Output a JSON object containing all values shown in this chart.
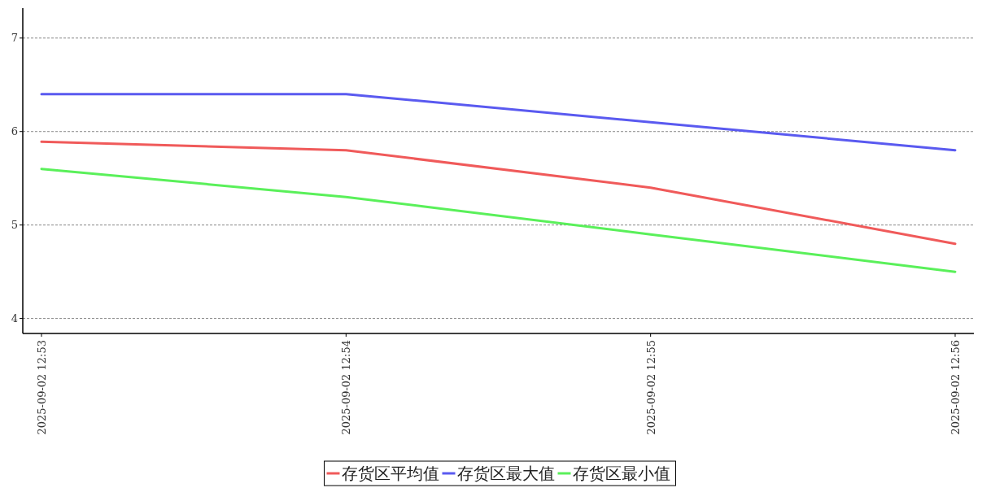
{
  "chart_data": {
    "type": "line",
    "categories": [
      "2025-09-02 12:53",
      "2025-09-02 12:54",
      "2025-09-02 12:55",
      "2025-09-02 12:56"
    ],
    "series": [
      {
        "name": "存货区平均值",
        "color": "#f05a5a",
        "values": [
          5.89,
          5.8,
          5.4,
          4.8
        ]
      },
      {
        "name": "存货区最大值",
        "color": "#5a5af0",
        "values": [
          6.4,
          6.4,
          6.1,
          5.8
        ]
      },
      {
        "name": "存货区最小值",
        "color": "#5af05a",
        "values": [
          5.6,
          5.3,
          4.9,
          4.5
        ]
      }
    ],
    "ylim": [
      3.84,
      7.32
    ],
    "yticks": [
      4,
      5,
      6,
      7
    ],
    "grid": "y",
    "legend": "bottom",
    "line_style": "solid",
    "marker": "none"
  }
}
